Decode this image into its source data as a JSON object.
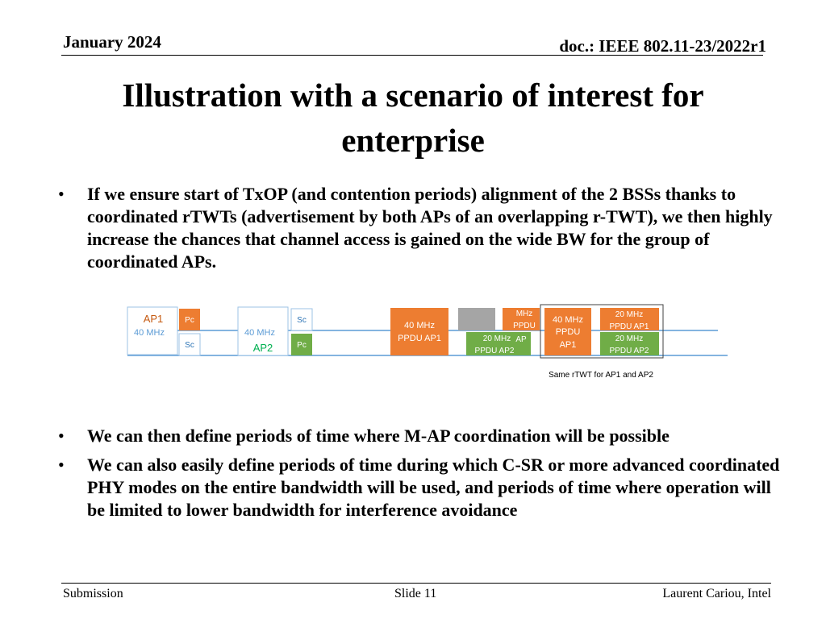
{
  "header": {
    "date": "January 2024",
    "doc": "doc.: IEEE 802.11-23/2022r1"
  },
  "title": "Illustration with a scenario of interest for enterprise",
  "bullets_top": [
    "If we ensure start of TxOP (and contention periods) alignment of the 2 BSSs thanks to coordinated rTWTs (advertisement by both APs of an overlapping r-TWT), we then highly increase the chances that channel access is gained on the wide BW for the group of coordinated APs."
  ],
  "diagram": {
    "ap1": {
      "name": "AP1",
      "bw": "40 MHz"
    },
    "ap2": {
      "name": "AP2",
      "bw": "40 MHz"
    },
    "pc": "Pc",
    "sc": "Sc",
    "ppdu_40_ap1": [
      "40 MHz",
      "PPDU AP1"
    ],
    "mhz_ppdu_partial": [
      "MHz",
      "PPDU"
    ],
    "ppdu_20_ap2": [
      "20 MHz",
      "PPDU AP2"
    ],
    "ap_partial": "AP",
    "rtwt_ppdu_40_ap1": [
      "40 MHz",
      "PPDU",
      "AP1"
    ],
    "rtwt_ppdu_20_ap1": [
      "20 MHz",
      "PPDU AP1"
    ],
    "rtwt_ppdu_20_ap2": [
      "20 MHz",
      "PPDU AP2"
    ],
    "rtwt_caption": "Same rTWT for AP1 and AP2",
    "colors": {
      "orange": "#ED7D31",
      "green": "#70AD47",
      "gray": "#A5A5A5",
      "blue_line": "#5B9BD5",
      "ap1_text": "#C55A11",
      "ap2_text": "#00B050"
    }
  },
  "bullets_bottom": [
    "We can then define periods of time where M-AP coordination will be possible",
    "We can also easily define periods of time during which C-SR or more advanced coordinated PHY modes on the entire bandwidth will be used,  and periods of time where operation will be limited to lower bandwidth for interference avoidance"
  ],
  "footer": {
    "left": "Submission",
    "center": "Slide 11",
    "right": "Laurent Cariou, Intel"
  }
}
